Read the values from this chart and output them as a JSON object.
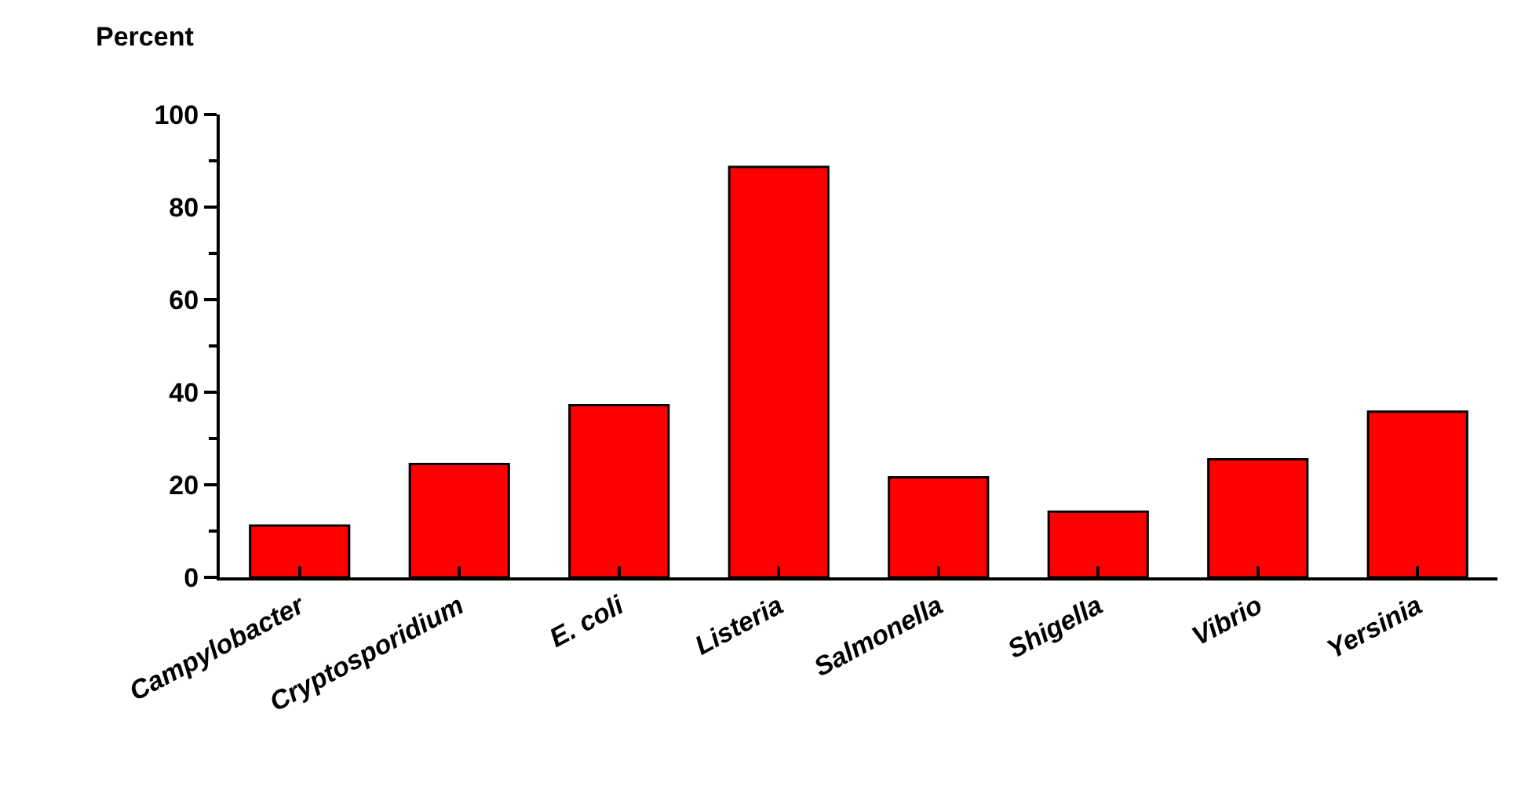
{
  "chart_data": {
    "type": "bar",
    "ylabel": "Percent",
    "categories": [
      "Campylobacter",
      "Cryptosporidium",
      "E. coli",
      "Listeria",
      "Salmonella",
      "Shigella",
      "Vibrio",
      "Yersinia"
    ],
    "values": [
      11.2,
      24.5,
      37.2,
      88.7,
      21.6,
      14.2,
      25.5,
      35.8
    ],
    "color": "#ff0000",
    "ylim": [
      0,
      100
    ],
    "yticks": [
      0,
      20,
      40,
      60,
      80,
      100
    ]
  }
}
